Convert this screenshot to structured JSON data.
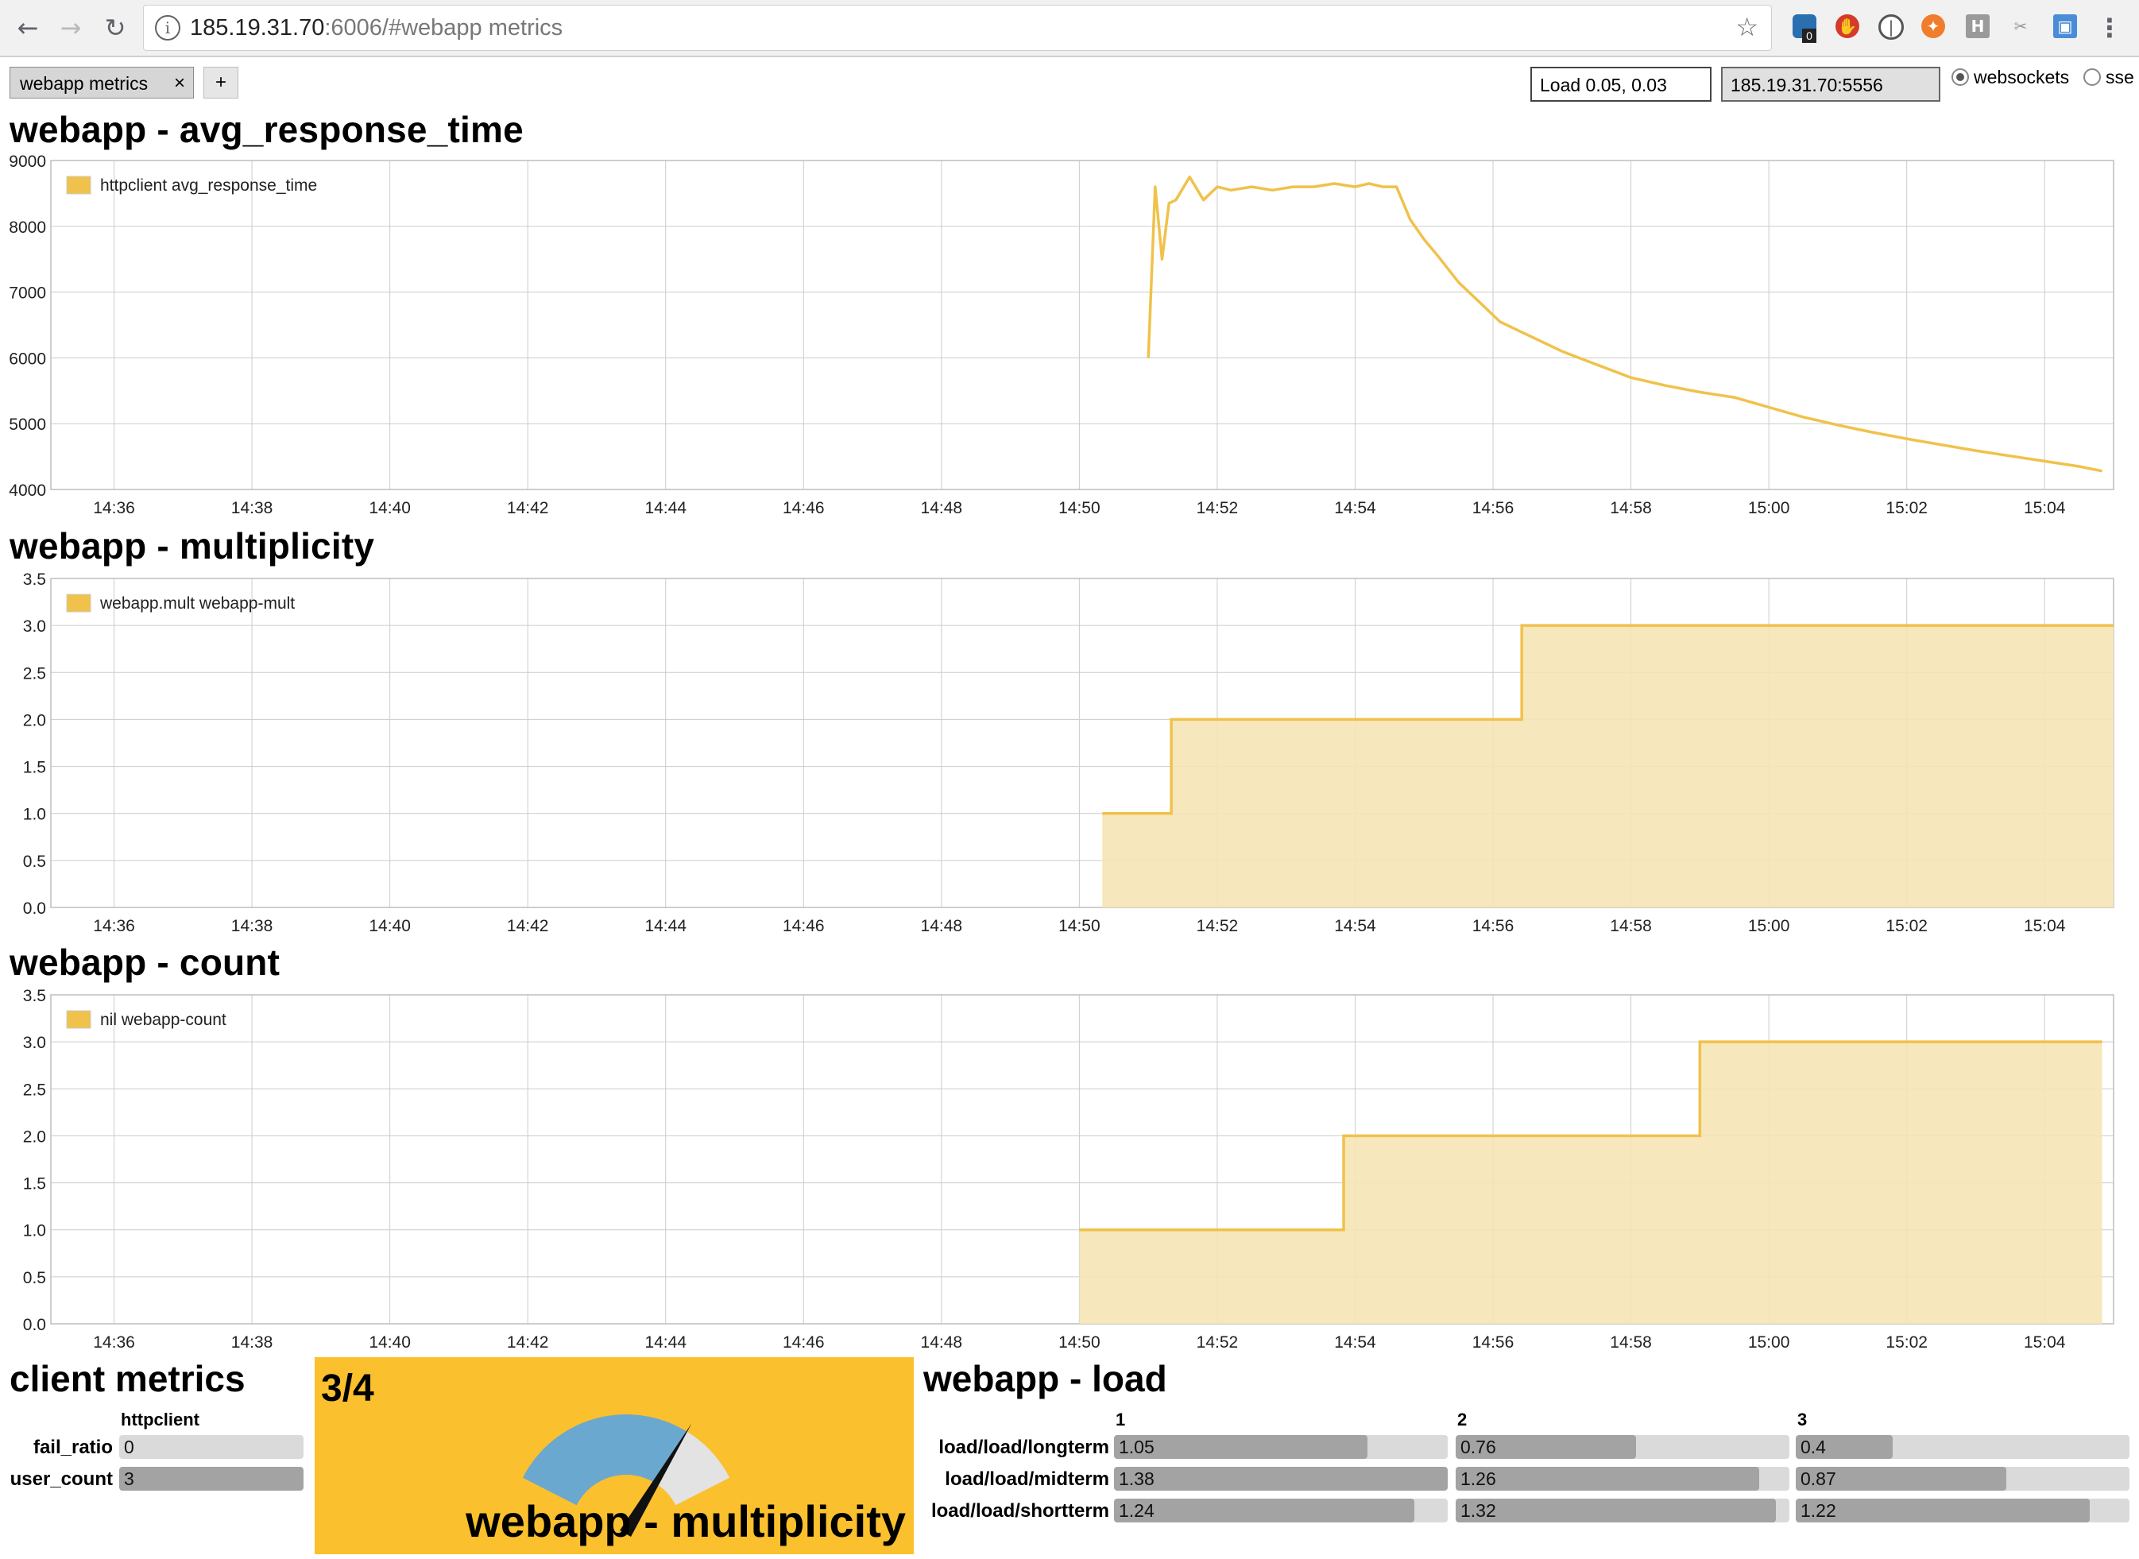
{
  "browser": {
    "url_host": "185.19.31.70",
    "url_rest": ":6006/#webapp metrics",
    "badge_count": "0"
  },
  "toolbar": {
    "tab_label": "webapp metrics",
    "tab_close": "×",
    "add_label": "+",
    "load_value": "Load 0.05, 0.03",
    "server_value": "185.19.31.70:5556",
    "transport_options": [
      "websockets",
      "sse"
    ],
    "transport_selected": "websockets"
  },
  "colors": {
    "series": "#f0c24b",
    "fill": "#f5e4b5",
    "gauge_panel": "#fbc02d",
    "gauge_arc": "#6aa8cf",
    "gauge_rest": "#e3e3e3"
  },
  "panels": {
    "avg": {
      "title": "webapp - avg_response_time",
      "legend": "httpclient avg_response_time"
    },
    "mult": {
      "title": "webapp - multiplicity",
      "legend": "webapp.mult webapp-mult"
    },
    "count": {
      "title": "webapp - count",
      "legend": "nil webapp-count"
    }
  },
  "chart_data": [
    {
      "type": "line",
      "title": "webapp - avg_response_time",
      "series": [
        {
          "name": "httpclient avg_response_time",
          "x": [
            "14:51:00",
            "14:51:06",
            "14:51:12",
            "14:51:18",
            "14:51:24",
            "14:51:36",
            "14:51:48",
            "14:52:00",
            "14:52:12",
            "14:52:30",
            "14:52:48",
            "14:53:06",
            "14:53:24",
            "14:53:42",
            "14:54:00",
            "14:54:12",
            "14:54:24",
            "14:54:36",
            "14:54:48",
            "14:55:00",
            "14:55:12",
            "14:55:30",
            "14:55:48",
            "14:56:06",
            "14:56:30",
            "14:57:00",
            "14:57:30",
            "14:58:00",
            "14:58:30",
            "14:59:00",
            "14:59:30",
            "15:00:00",
            "15:00:30",
            "15:01:00",
            "15:01:30",
            "15:02:00",
            "15:02:30",
            "15:03:00",
            "15:03:30",
            "15:04:00",
            "15:04:30",
            "15:04:50"
          ],
          "y": [
            6000,
            8600,
            7500,
            8350,
            8400,
            8750,
            8400,
            8600,
            8550,
            8600,
            8550,
            8600,
            8600,
            8650,
            8600,
            8650,
            8600,
            8600,
            8100,
            7800,
            7550,
            7150,
            6850,
            6550,
            6350,
            6100,
            5900,
            5700,
            5580,
            5480,
            5400,
            5250,
            5100,
            4980,
            4870,
            4770,
            4680,
            4590,
            4510,
            4430,
            4350,
            4280
          ]
        }
      ],
      "ylim": [
        4000,
        9000
      ],
      "y_ticks": [
        "9000",
        "8000",
        "7000",
        "6000",
        "5000",
        "4000"
      ],
      "x_ticks": [
        "14:36",
        "14:38",
        "14:40",
        "14:42",
        "14:44",
        "14:46",
        "14:48",
        "14:50",
        "14:52",
        "14:54",
        "14:56",
        "14:58",
        "15:00",
        "15:02",
        "15:04"
      ],
      "xlim": [
        "14:35:05",
        "15:05:00"
      ]
    },
    {
      "type": "area",
      "title": "webapp - multiplicity",
      "series": [
        {
          "name": "webapp.mult webapp-mult",
          "steps": [
            {
              "x": "14:50:20",
              "y": 1
            },
            {
              "x": "14:51:20",
              "y": 2
            },
            {
              "x": "14:56:25",
              "y": 3
            },
            {
              "x": "15:05:00",
              "y": 3
            }
          ]
        }
      ],
      "ylim": [
        0,
        3.5
      ],
      "y_ticks": [
        "3.5",
        "3.0",
        "2.5",
        "2.0",
        "1.5",
        "1.0",
        "0.5",
        "0.0"
      ],
      "x_ticks": [
        "14:36",
        "14:38",
        "14:40",
        "14:42",
        "14:44",
        "14:46",
        "14:48",
        "14:50",
        "14:52",
        "14:54",
        "14:56",
        "14:58",
        "15:00",
        "15:02",
        "15:04"
      ],
      "xlim": [
        "14:35:05",
        "15:05:00"
      ]
    },
    {
      "type": "area",
      "title": "webapp - count",
      "series": [
        {
          "name": "nil webapp-count",
          "steps": [
            {
              "x": "14:50:00",
              "y": 1
            },
            {
              "x": "14:53:50",
              "y": 2
            },
            {
              "x": "14:59:00",
              "y": 3
            },
            {
              "x": "15:04:50",
              "y": 3
            }
          ]
        }
      ],
      "ylim": [
        0,
        3.5
      ],
      "y_ticks": [
        "3.5",
        "3.0",
        "2.5",
        "2.0",
        "1.5",
        "1.0",
        "0.5",
        "0.0"
      ],
      "x_ticks": [
        "14:36",
        "14:38",
        "14:40",
        "14:42",
        "14:44",
        "14:46",
        "14:48",
        "14:50",
        "14:52",
        "14:54",
        "14:56",
        "14:58",
        "15:00",
        "15:02",
        "15:04"
      ],
      "xlim": [
        "14:35:05",
        "15:05:00"
      ]
    }
  ],
  "client_metrics": {
    "title": "client metrics",
    "column": "httpclient",
    "rows": [
      {
        "label": "fail_ratio",
        "value": "0",
        "fraction": 0
      },
      {
        "label": "user_count",
        "value": "3",
        "fraction": 1.0
      }
    ]
  },
  "gauge": {
    "value": "3/4",
    "title": "webapp - multiplicity",
    "fraction": 0.75
  },
  "load": {
    "title": "webapp - load",
    "columns": [
      "1",
      "2",
      "3"
    ],
    "rows": [
      {
        "label": "load/load/longterm",
        "cells": [
          {
            "value": "1.05",
            "fraction": 0.76
          },
          {
            "value": "0.76",
            "fraction": 0.54
          },
          {
            "value": "0.4",
            "fraction": 0.29
          }
        ]
      },
      {
        "label": "load/load/midterm",
        "cells": [
          {
            "value": "1.38",
            "fraction": 1.0
          },
          {
            "value": "1.26",
            "fraction": 0.91
          },
          {
            "value": "0.87",
            "fraction": 0.63
          }
        ]
      },
      {
        "label": "load/load/shortterm",
        "cells": [
          {
            "value": "1.24",
            "fraction": 0.9
          },
          {
            "value": "1.32",
            "fraction": 0.96
          },
          {
            "value": "1.22",
            "fraction": 0.88
          }
        ]
      }
    ]
  }
}
